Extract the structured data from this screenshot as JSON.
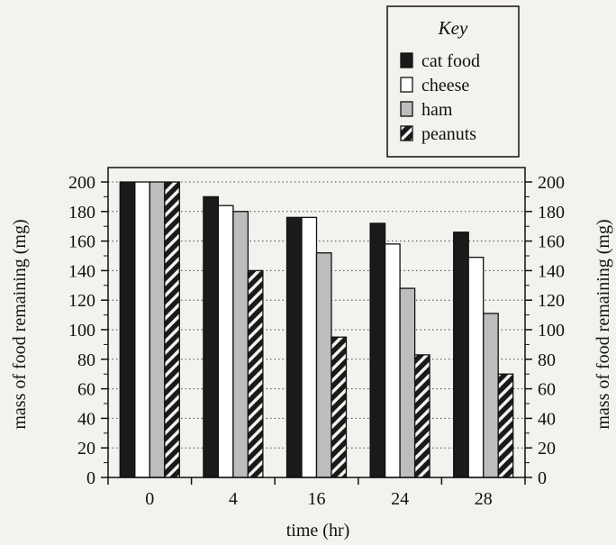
{
  "chart_data": {
    "type": "bar",
    "title": "",
    "xlabel": "time (hr)",
    "ylabel": "mass of food remaining (mg)",
    "ylabel_right": "mass of food remaining (mg)",
    "categories": [
      "0",
      "4",
      "16",
      "24",
      "28"
    ],
    "ylim": [
      0,
      200
    ],
    "yticks": [
      0,
      20,
      40,
      60,
      80,
      100,
      120,
      140,
      160,
      180,
      200
    ],
    "grid": "horizontal dotted",
    "legend": {
      "title": "Key",
      "position": "top-right"
    },
    "series": [
      {
        "name": "cat food",
        "values": [
          200,
          190,
          176,
          172,
          166
        ],
        "color": "#1a1a1a",
        "pattern": "solid"
      },
      {
        "name": "cheese",
        "values": [
          200,
          184,
          176,
          158,
          149
        ],
        "color": "#ffffff",
        "pattern": "solid"
      },
      {
        "name": "ham",
        "values": [
          200,
          180,
          152,
          128,
          111
        ],
        "color": "#bdbdbd",
        "pattern": "solid"
      },
      {
        "name": "peanuts",
        "values": [
          200,
          140,
          95,
          83,
          70
        ],
        "color": "#1a1a1a",
        "pattern": "diagonal-stripes"
      }
    ]
  }
}
